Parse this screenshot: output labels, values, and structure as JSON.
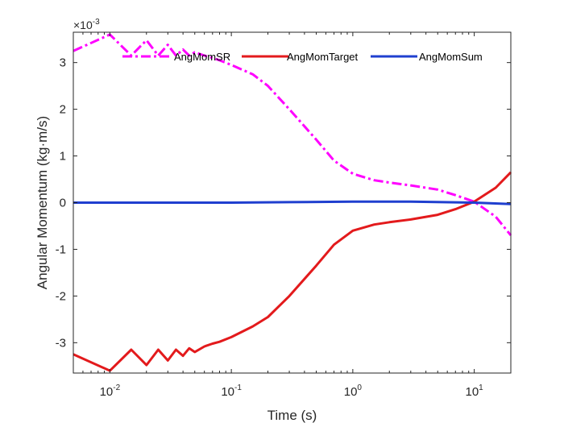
{
  "chart_data": {
    "type": "line",
    "xscale": "log",
    "xlim": [
      0.005,
      20
    ],
    "ylim": [
      -3.65,
      3.65
    ],
    "y_multiplier": "×10^-3",
    "xlabel": "Time (s)",
    "ylabel": "Angular Momentum (kg·m/s)",
    "x_ticks": [
      {
        "value": 0.01,
        "base": "10",
        "exp": "-2"
      },
      {
        "value": 0.1,
        "base": "10",
        "exp": "-1"
      },
      {
        "value": 1,
        "base": "10",
        "exp": "0"
      },
      {
        "value": 10,
        "base": "10",
        "exp": "1"
      }
    ],
    "y_ticks": [
      {
        "value": -3,
        "label": "-3"
      },
      {
        "value": -2,
        "label": "-2"
      },
      {
        "value": -1,
        "label": "-1"
      },
      {
        "value": 0,
        "label": "0"
      },
      {
        "value": 1,
        "label": "1"
      },
      {
        "value": 2,
        "label": "2"
      },
      {
        "value": 3,
        "label": "3"
      }
    ],
    "grid": false,
    "legend_position": "top",
    "series": [
      {
        "name": "AngMomSR",
        "color": "#ff00ff",
        "dash": "dashdot",
        "x": [
          0.005,
          0.01,
          0.015,
          0.02,
          0.025,
          0.03,
          0.035,
          0.04,
          0.045,
          0.05,
          0.06,
          0.07,
          0.08,
          0.1,
          0.15,
          0.2,
          0.3,
          0.5,
          0.7,
          1.0,
          1.5,
          2.0,
          3.0,
          5.0,
          7.0,
          10.0,
          15.0,
          20.0
        ],
        "y": [
          3.25,
          3.6,
          3.15,
          3.48,
          3.15,
          3.38,
          3.15,
          3.28,
          3.15,
          3.22,
          3.15,
          3.1,
          3.05,
          2.95,
          2.75,
          2.5,
          2.0,
          1.35,
          0.9,
          0.62,
          0.48,
          0.43,
          0.37,
          0.28,
          0.16,
          0.02,
          -0.3,
          -0.7
        ]
      },
      {
        "name": "AngMomTarget",
        "color": "#e31a1c",
        "dash": "solid",
        "x": [
          0.005,
          0.01,
          0.015,
          0.02,
          0.025,
          0.03,
          0.035,
          0.04,
          0.045,
          0.05,
          0.06,
          0.07,
          0.08,
          0.1,
          0.15,
          0.2,
          0.3,
          0.5,
          0.7,
          1.0,
          1.5,
          2.0,
          3.0,
          5.0,
          7.0,
          10.0,
          15.0,
          20.0
        ],
        "y": [
          -3.25,
          -3.6,
          -3.15,
          -3.48,
          -3.15,
          -3.38,
          -3.15,
          -3.28,
          -3.12,
          -3.2,
          -3.08,
          -3.02,
          -2.98,
          -2.88,
          -2.65,
          -2.45,
          -2.0,
          -1.35,
          -0.9,
          -0.6,
          -0.47,
          -0.42,
          -0.36,
          -0.26,
          -0.14,
          0.02,
          0.32,
          0.65
        ]
      },
      {
        "name": "AngMomSum",
        "color": "#1f3fcf",
        "dash": "solid",
        "x": [
          0.005,
          0.01,
          0.1,
          0.3,
          1.0,
          3.0,
          10.0,
          20.0
        ],
        "y": [
          0.0,
          0.0,
          0.0,
          0.01,
          0.02,
          0.02,
          0.0,
          -0.03
        ]
      }
    ]
  }
}
